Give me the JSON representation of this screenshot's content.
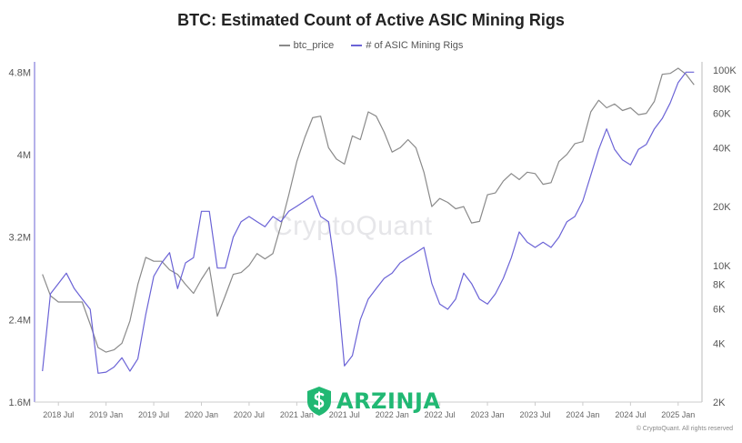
{
  "chart_data": {
    "type": "line",
    "title": "BTC: Estimated Count of Active ASIC Mining Rigs",
    "legend_position": "top-center",
    "grid": false,
    "x_ticks": [
      "2018 Jul",
      "2019 Jan",
      "2019 Jul",
      "2020 Jan",
      "2020 Jul",
      "2021 Jan",
      "2021 Jul",
      "2022 Jan",
      "2022 Jul",
      "2023 Jan",
      "2023 Jul",
      "2024 Jan",
      "2024 Jul",
      "2025 Jan"
    ],
    "xlim": [
      "2018-04",
      "2025-04"
    ],
    "left_axis": {
      "ticks": [
        "1.6M",
        "2.4M",
        "3.2M",
        "4M",
        "4.8M"
      ],
      "ylim": [
        1600000,
        4900000
      ],
      "scale": "linear"
    },
    "right_axis": {
      "ticks": [
        "2K",
        "4K",
        "6K",
        "8K",
        "10K",
        "20K",
        "40K",
        "60K",
        "80K",
        "100K"
      ],
      "ylim": [
        2000,
        110000
      ],
      "scale": "log"
    },
    "series": [
      {
        "name": "btc_price",
        "axis": "right",
        "color": "#8a8a8a",
        "x": [
          "2018-05",
          "2018-06",
          "2018-07",
          "2018-08",
          "2018-09",
          "2018-10",
          "2018-11",
          "2018-12",
          "2019-01",
          "2019-02",
          "2019-03",
          "2019-04",
          "2019-05",
          "2019-06",
          "2019-07",
          "2019-08",
          "2019-09",
          "2019-10",
          "2019-11",
          "2019-12",
          "2020-01",
          "2020-02",
          "2020-03",
          "2020-04",
          "2020-05",
          "2020-06",
          "2020-07",
          "2020-08",
          "2020-09",
          "2020-10",
          "2020-11",
          "2020-12",
          "2021-01",
          "2021-02",
          "2021-03",
          "2021-04",
          "2021-05",
          "2021-06",
          "2021-07",
          "2021-08",
          "2021-09",
          "2021-10",
          "2021-11",
          "2021-12",
          "2022-01",
          "2022-02",
          "2022-03",
          "2022-04",
          "2022-05",
          "2022-06",
          "2022-07",
          "2022-08",
          "2022-09",
          "2022-10",
          "2022-11",
          "2022-12",
          "2023-01",
          "2023-02",
          "2023-03",
          "2023-04",
          "2023-05",
          "2023-06",
          "2023-07",
          "2023-08",
          "2023-09",
          "2023-10",
          "2023-11",
          "2023-12",
          "2024-01",
          "2024-02",
          "2024-03",
          "2024-04",
          "2024-05",
          "2024-06",
          "2024-07",
          "2024-08",
          "2024-09",
          "2024-10",
          "2024-11",
          "2024-12",
          "2025-01",
          "2025-02",
          "2025-03"
        ],
        "values": [
          9000,
          7000,
          6500,
          6500,
          6500,
          6500,
          5000,
          3800,
          3600,
          3700,
          4000,
          5200,
          8000,
          11000,
          10500,
          10500,
          9500,
          9000,
          8000,
          7200,
          8500,
          9800,
          5500,
          7000,
          9000,
          9200,
          10000,
          11500,
          10800,
          11500,
          16000,
          23000,
          34000,
          45000,
          57000,
          58000,
          40000,
          35000,
          33000,
          46000,
          44000,
          61000,
          58000,
          48000,
          38000,
          40000,
          44000,
          40000,
          30000,
          20000,
          22000,
          21000,
          19500,
          20000,
          16500,
          16800,
          23000,
          23500,
          27000,
          29500,
          27500,
          30000,
          29500,
          26000,
          26500,
          34000,
          37000,
          42000,
          43000,
          61000,
          70000,
          64000,
          67000,
          62000,
          64000,
          59000,
          60000,
          69000,
          95000,
          96000,
          102000,
          95000,
          84000
        ]
      },
      {
        "name": "# of ASIC Mining Rigs",
        "axis": "left",
        "color": "#6b63d6",
        "x": [
          "2018-05",
          "2018-06",
          "2018-07",
          "2018-08",
          "2018-09",
          "2018-10",
          "2018-11",
          "2018-12",
          "2019-01",
          "2019-02",
          "2019-03",
          "2019-04",
          "2019-05",
          "2019-06",
          "2019-07",
          "2019-08",
          "2019-09",
          "2019-10",
          "2019-11",
          "2019-12",
          "2020-01",
          "2020-02",
          "2020-03",
          "2020-04",
          "2020-05",
          "2020-06",
          "2020-07",
          "2020-08",
          "2020-09",
          "2020-10",
          "2020-11",
          "2020-12",
          "2021-01",
          "2021-02",
          "2021-03",
          "2021-04",
          "2021-05",
          "2021-06",
          "2021-07",
          "2021-08",
          "2021-09",
          "2021-10",
          "2021-11",
          "2021-12",
          "2022-01",
          "2022-02",
          "2022-03",
          "2022-04",
          "2022-05",
          "2022-06",
          "2022-07",
          "2022-08",
          "2022-09",
          "2022-10",
          "2022-11",
          "2022-12",
          "2023-01",
          "2023-02",
          "2023-03",
          "2023-04",
          "2023-05",
          "2023-06",
          "2023-07",
          "2023-08",
          "2023-09",
          "2023-10",
          "2023-11",
          "2023-12",
          "2024-01",
          "2024-02",
          "2024-03",
          "2024-04",
          "2024-05",
          "2024-06",
          "2024-07",
          "2024-08",
          "2024-09",
          "2024-10",
          "2024-11",
          "2024-12",
          "2025-01",
          "2025-02",
          "2025-03"
        ],
        "values": [
          1900000,
          2650000,
          2750000,
          2850000,
          2700000,
          2600000,
          2500000,
          1880000,
          1890000,
          1940000,
          2030000,
          1900000,
          2020000,
          2450000,
          2820000,
          2950000,
          3050000,
          2700000,
          2950000,
          3000000,
          3450000,
          3450000,
          2900000,
          2900000,
          3200000,
          3350000,
          3400000,
          3350000,
          3300000,
          3400000,
          3350000,
          3450000,
          3500000,
          3550000,
          3600000,
          3400000,
          3350000,
          2800000,
          1950000,
          2050000,
          2400000,
          2600000,
          2700000,
          2800000,
          2850000,
          2950000,
          3000000,
          3050000,
          3100000,
          2750000,
          2550000,
          2500000,
          2600000,
          2850000,
          2750000,
          2600000,
          2550000,
          2650000,
          2800000,
          3000000,
          3250000,
          3150000,
          3100000,
          3150000,
          3100000,
          3200000,
          3350000,
          3400000,
          3550000,
          3800000,
          4050000,
          4250000,
          4050000,
          3950000,
          3900000,
          4050000,
          4100000,
          4250000,
          4350000,
          4500000,
          4700000,
          4800000,
          4800000
        ]
      }
    ]
  },
  "watermark": "CryptoQuant",
  "brand": {
    "name": "ARZINJA"
  },
  "footer": "© CryptoQuant. All rights reserved"
}
